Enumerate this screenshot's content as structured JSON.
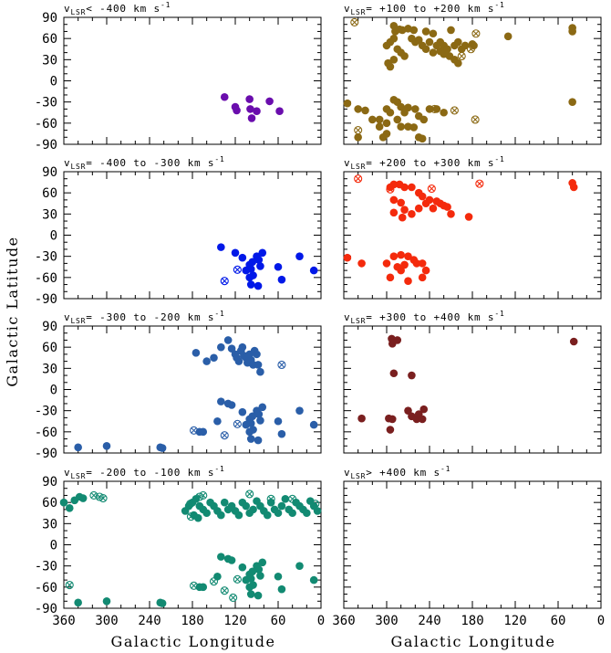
{
  "figure": {
    "xlabel": "Galactic Longitude",
    "ylabel": "Galactic Latitude",
    "xticks": [
      360,
      300,
      240,
      180,
      120,
      60,
      0
    ],
    "yticks": [
      90,
      60,
      30,
      0,
      -30,
      -60,
      -90
    ]
  },
  "chart_data": [
    {
      "type": "scatter",
      "title": "v_LSR < -400 km s^-1",
      "title_main": "v",
      "title_sub": "LSR",
      "title_rest": "< -400 km s",
      "color": "#6a0dad",
      "xlim": [
        360,
        0
      ],
      "ylim": [
        -90,
        90
      ],
      "points": [
        [
          135,
          -23
        ],
        [
          120,
          -37
        ],
        [
          118,
          -42
        ],
        [
          100,
          -26
        ],
        [
          99,
          -40
        ],
        [
          97,
          -53
        ],
        [
          90,
          -43
        ],
        [
          72,
          -29
        ],
        [
          58,
          -43
        ]
      ],
      "crossed": []
    },
    {
      "type": "scatter",
      "title": "v_LSR = +100 to +200 km s^-1",
      "title_main": "v",
      "title_sub": "LSR",
      "title_rest": "= +100 to +200 km s",
      "color": "#8b6914",
      "xlim": [
        360,
        0
      ],
      "ylim": [
        -90,
        90
      ],
      "points": [
        [
          290,
          78
        ],
        [
          288,
          70
        ],
        [
          282,
          73
        ],
        [
          278,
          72
        ],
        [
          270,
          74
        ],
        [
          262,
          72
        ],
        [
          245,
          70
        ],
        [
          235,
          67
        ],
        [
          210,
          72
        ],
        [
          225,
          55
        ],
        [
          220,
          50
        ],
        [
          215,
          45
        ],
        [
          205,
          50
        ],
        [
          200,
          55
        ],
        [
          195,
          45
        ],
        [
          190,
          50
        ],
        [
          180,
          52
        ],
        [
          178,
          50
        ],
        [
          265,
          60
        ],
        [
          260,
          55
        ],
        [
          255,
          58
        ],
        [
          250,
          50
        ],
        [
          245,
          45
        ],
        [
          240,
          55
        ],
        [
          235,
          40
        ],
        [
          230,
          50
        ],
        [
          225,
          42
        ],
        [
          220,
          38
        ],
        [
          212,
          35
        ],
        [
          205,
          30
        ],
        [
          200,
          25
        ],
        [
          285,
          45
        ],
        [
          280,
          40
        ],
        [
          275,
          35
        ],
        [
          290,
          30
        ],
        [
          295,
          20
        ],
        [
          298,
          25
        ],
        [
          300,
          50
        ],
        [
          295,
          55
        ],
        [
          290,
          60
        ],
        [
          130,
          63
        ],
        [
          40,
          75
        ],
        [
          40,
          70
        ],
        [
          355,
          -32
        ],
        [
          340,
          -40
        ],
        [
          330,
          -42
        ],
        [
          320,
          -55
        ],
        [
          310,
          -65
        ],
        [
          300,
          -40
        ],
        [
          295,
          -45
        ],
        [
          290,
          -27
        ],
        [
          285,
          -30
        ],
        [
          280,
          -37
        ],
        [
          275,
          -45
        ],
        [
          270,
          -38
        ],
        [
          260,
          -40
        ],
        [
          255,
          -50
        ],
        [
          248,
          -55
        ],
        [
          285,
          -55
        ],
        [
          280,
          -65
        ],
        [
          270,
          -65
        ],
        [
          262,
          -66
        ],
        [
          255,
          -80
        ],
        [
          300,
          -75
        ],
        [
          310,
          -55
        ],
        [
          300,
          -60
        ],
        [
          240,
          -40
        ],
        [
          230,
          -40
        ],
        [
          220,
          -45
        ],
        [
          40,
          -30
        ],
        [
          340,
          -80
        ],
        [
          305,
          -80
        ],
        [
          250,
          -82
        ]
      ],
      "crossed": [
        [
          345,
          83
        ],
        [
          175,
          67
        ],
        [
          195,
          35
        ],
        [
          182,
          45
        ],
        [
          233,
          -40
        ],
        [
          205,
          -42
        ],
        [
          176,
          -55
        ],
        [
          340,
          -70
        ]
      ]
    },
    {
      "type": "scatter",
      "title": "v_LSR = -400 to -300 km s^-1",
      "title_main": "v",
      "title_sub": "LSR",
      "title_rest": "= -400 to -300 km s",
      "color": "#0018e8",
      "xlim": [
        360,
        0
      ],
      "ylim": [
        -90,
        90
      ],
      "points": [
        [
          140,
          -17
        ],
        [
          120,
          -25
        ],
        [
          110,
          -32
        ],
        [
          105,
          -50
        ],
        [
          100,
          -42
        ],
        [
          98,
          -48
        ],
        [
          96,
          -38
        ],
        [
          95,
          -57
        ],
        [
          90,
          -30
        ],
        [
          87,
          -35
        ],
        [
          85,
          -44
        ],
        [
          82,
          -25
        ],
        [
          100,
          -60
        ],
        [
          98,
          -70
        ],
        [
          88,
          -72
        ],
        [
          60,
          -45
        ],
        [
          55,
          -63
        ],
        [
          30,
          -30
        ],
        [
          10,
          -50
        ]
      ],
      "crossed": [
        [
          135,
          -65
        ],
        [
          117,
          -49
        ]
      ]
    },
    {
      "type": "scatter",
      "title": "v_LSR = +200 to +300 km s^-1",
      "title_main": "v",
      "title_sub": "LSR",
      "title_rest": "= +200 to +300 km s",
      "color": "#f42a0c",
      "xlim": [
        360,
        0
      ],
      "ylim": [
        -90,
        90
      ],
      "points": [
        [
          295,
          68
        ],
        [
          290,
          72
        ],
        [
          282,
          72
        ],
        [
          275,
          68
        ],
        [
          265,
          68
        ],
        [
          255,
          60
        ],
        [
          250,
          55
        ],
        [
          245,
          45
        ],
        [
          240,
          50
        ],
        [
          235,
          38
        ],
        [
          230,
          48
        ],
        [
          225,
          45
        ],
        [
          220,
          42
        ],
        [
          215,
          40
        ],
        [
          210,
          30
        ],
        [
          185,
          26
        ],
        [
          290,
          50
        ],
        [
          280,
          46
        ],
        [
          275,
          36
        ],
        [
          265,
          30
        ],
        [
          290,
          32
        ],
        [
          278,
          25
        ],
        [
          255,
          38
        ],
        [
          40,
          74
        ],
        [
          38,
          68
        ],
        [
          355,
          -32
        ],
        [
          335,
          -40
        ],
        [
          290,
          -30
        ],
        [
          280,
          -28
        ],
        [
          270,
          -30
        ],
        [
          262,
          -35
        ],
        [
          258,
          -40
        ],
        [
          250,
          -40
        ],
        [
          245,
          -50
        ],
        [
          285,
          -45
        ],
        [
          280,
          -50
        ],
        [
          295,
          -60
        ],
        [
          270,
          -65
        ],
        [
          250,
          -60
        ],
        [
          300,
          -40
        ],
        [
          275,
          -42
        ]
      ],
      "crossed": [
        [
          340,
          80
        ],
        [
          295,
          65
        ],
        [
          237,
          66
        ],
        [
          170,
          73
        ]
      ]
    },
    {
      "type": "scatter",
      "title": "v_LSR = -300 to -200 km s^-1",
      "title_main": "v",
      "title_sub": "LSR",
      "title_rest": "= -300 to -200 km s",
      "color": "#2a5ea8",
      "xlim": [
        360,
        0
      ],
      "ylim": [
        -90,
        90
      ],
      "points": [
        [
          175,
          52
        ],
        [
          160,
          40
        ],
        [
          150,
          45
        ],
        [
          140,
          60
        ],
        [
          130,
          70
        ],
        [
          125,
          58
        ],
        [
          120,
          50
        ],
        [
          118,
          45
        ],
        [
          115,
          40
        ],
        [
          112,
          55
        ],
        [
          110,
          60
        ],
        [
          108,
          48
        ],
        [
          105,
          45
        ],
        [
          103,
          38
        ],
        [
          100,
          50
        ],
        [
          98,
          42
        ],
        [
          95,
          35
        ],
        [
          93,
          55
        ],
        [
          90,
          50
        ],
        [
          88,
          35
        ],
        [
          85,
          25
        ],
        [
          140,
          -17
        ],
        [
          130,
          -20
        ],
        [
          125,
          -22
        ],
        [
          110,
          -32
        ],
        [
          105,
          -50
        ],
        [
          100,
          -42
        ],
        [
          98,
          -48
        ],
        [
          96,
          -38
        ],
        [
          95,
          -57
        ],
        [
          90,
          -30
        ],
        [
          87,
          -35
        ],
        [
          85,
          -44
        ],
        [
          82,
          -25
        ],
        [
          100,
          -60
        ],
        [
          98,
          -70
        ],
        [
          88,
          -72
        ],
        [
          60,
          -45
        ],
        [
          55,
          -63
        ],
        [
          30,
          -30
        ],
        [
          10,
          -50
        ],
        [
          165,
          -60
        ],
        [
          145,
          -45
        ],
        [
          170,
          -60
        ],
        [
          340,
          -82
        ],
        [
          300,
          -80
        ],
        [
          225,
          -82
        ],
        [
          222,
          -83
        ]
      ],
      "crossed": [
        [
          55,
          35
        ],
        [
          135,
          -65
        ],
        [
          117,
          -49
        ],
        [
          178,
          -58
        ]
      ]
    },
    {
      "type": "scatter",
      "title": "v_LSR = +300 to +400 km s^-1",
      "title_main": "v",
      "title_sub": "LSR",
      "title_rest": "= +300 to +400 km s",
      "color": "#7a1f1f",
      "xlim": [
        360,
        0
      ],
      "ylim": [
        -90,
        90
      ],
      "points": [
        [
          293,
          72
        ],
        [
          292,
          65
        ],
        [
          285,
          70
        ],
        [
          290,
          23
        ],
        [
          265,
          20
        ],
        [
          335,
          -41
        ],
        [
          297,
          -41
        ],
        [
          292,
          -42
        ],
        [
          270,
          -30
        ],
        [
          265,
          -38
        ],
        [
          258,
          -42
        ],
        [
          255,
          -35
        ],
        [
          250,
          -42
        ],
        [
          248,
          -28
        ],
        [
          295,
          -57
        ],
        [
          38,
          68
        ]
      ],
      "crossed": []
    },
    {
      "type": "scatter",
      "title": "v_LSR = -200 to -100 km s^-1",
      "title_main": "v",
      "title_sub": "LSR",
      "title_rest": "= -200 to -100 km s",
      "color": "#128a72",
      "xlim": [
        360,
        0
      ],
      "ylim": [
        -90,
        90
      ],
      "points": [
        [
          360,
          60
        ],
        [
          352,
          52
        ],
        [
          345,
          63
        ],
        [
          338,
          68
        ],
        [
          333,
          66
        ],
        [
          180,
          60
        ],
        [
          175,
          65
        ],
        [
          170,
          55
        ],
        [
          165,
          50
        ],
        [
          160,
          45
        ],
        [
          155,
          60
        ],
        [
          150,
          55
        ],
        [
          145,
          48
        ],
        [
          140,
          42
        ],
        [
          135,
          60
        ],
        [
          130,
          50
        ],
        [
          125,
          55
        ],
        [
          120,
          48
        ],
        [
          115,
          42
        ],
        [
          110,
          60
        ],
        [
          105,
          55
        ],
        [
          100,
          45
        ],
        [
          95,
          50
        ],
        [
          90,
          62
        ],
        [
          85,
          55
        ],
        [
          80,
          48
        ],
        [
          75,
          42
        ],
        [
          70,
          60
        ],
        [
          65,
          50
        ],
        [
          60,
          45
        ],
        [
          55,
          55
        ],
        [
          50,
          65
        ],
        [
          45,
          50
        ],
        [
          40,
          45
        ],
        [
          35,
          60
        ],
        [
          30,
          55
        ],
        [
          25,
          50
        ],
        [
          20,
          45
        ],
        [
          15,
          62
        ],
        [
          10,
          55
        ],
        [
          5,
          48
        ],
        [
          190,
          48
        ],
        [
          185,
          55
        ],
        [
          178,
          42
        ],
        [
          172,
          38
        ],
        [
          140,
          -17
        ],
        [
          130,
          -20
        ],
        [
          125,
          -22
        ],
        [
          110,
          -32
        ],
        [
          105,
          -50
        ],
        [
          100,
          -42
        ],
        [
          98,
          -48
        ],
        [
          96,
          -38
        ],
        [
          95,
          -57
        ],
        [
          90,
          -30
        ],
        [
          87,
          -35
        ],
        [
          85,
          -44
        ],
        [
          82,
          -25
        ],
        [
          100,
          -60
        ],
        [
          98,
          -70
        ],
        [
          88,
          -72
        ],
        [
          60,
          -45
        ],
        [
          55,
          -63
        ],
        [
          30,
          -30
        ],
        [
          10,
          -50
        ],
        [
          165,
          -60
        ],
        [
          145,
          -45
        ],
        [
          170,
          -60
        ],
        [
          340,
          -82
        ],
        [
          300,
          -80
        ],
        [
          225,
          -82
        ],
        [
          222,
          -83
        ]
      ],
      "crossed": [
        [
          318,
          70
        ],
        [
          310,
          68
        ],
        [
          305,
          66
        ],
        [
          183,
          58
        ],
        [
          170,
          68
        ],
        [
          165,
          70
        ],
        [
          182,
          40
        ],
        [
          100,
          72
        ],
        [
          70,
          65
        ],
        [
          40,
          65
        ],
        [
          8,
          58
        ],
        [
          135,
          -65
        ],
        [
          117,
          -49
        ],
        [
          178,
          -58
        ],
        [
          352,
          -57
        ],
        [
          150,
          -52
        ],
        [
          123,
          -75
        ]
      ]
    },
    {
      "type": "scatter",
      "title": "v_LSR > +400 km s^-1",
      "title_main": "v",
      "title_sub": "LSR",
      "title_rest": "> +400 km s",
      "color": "#000000",
      "xlim": [
        360,
        0
      ],
      "ylim": [
        -90,
        90
      ],
      "points": [],
      "crossed": []
    }
  ]
}
